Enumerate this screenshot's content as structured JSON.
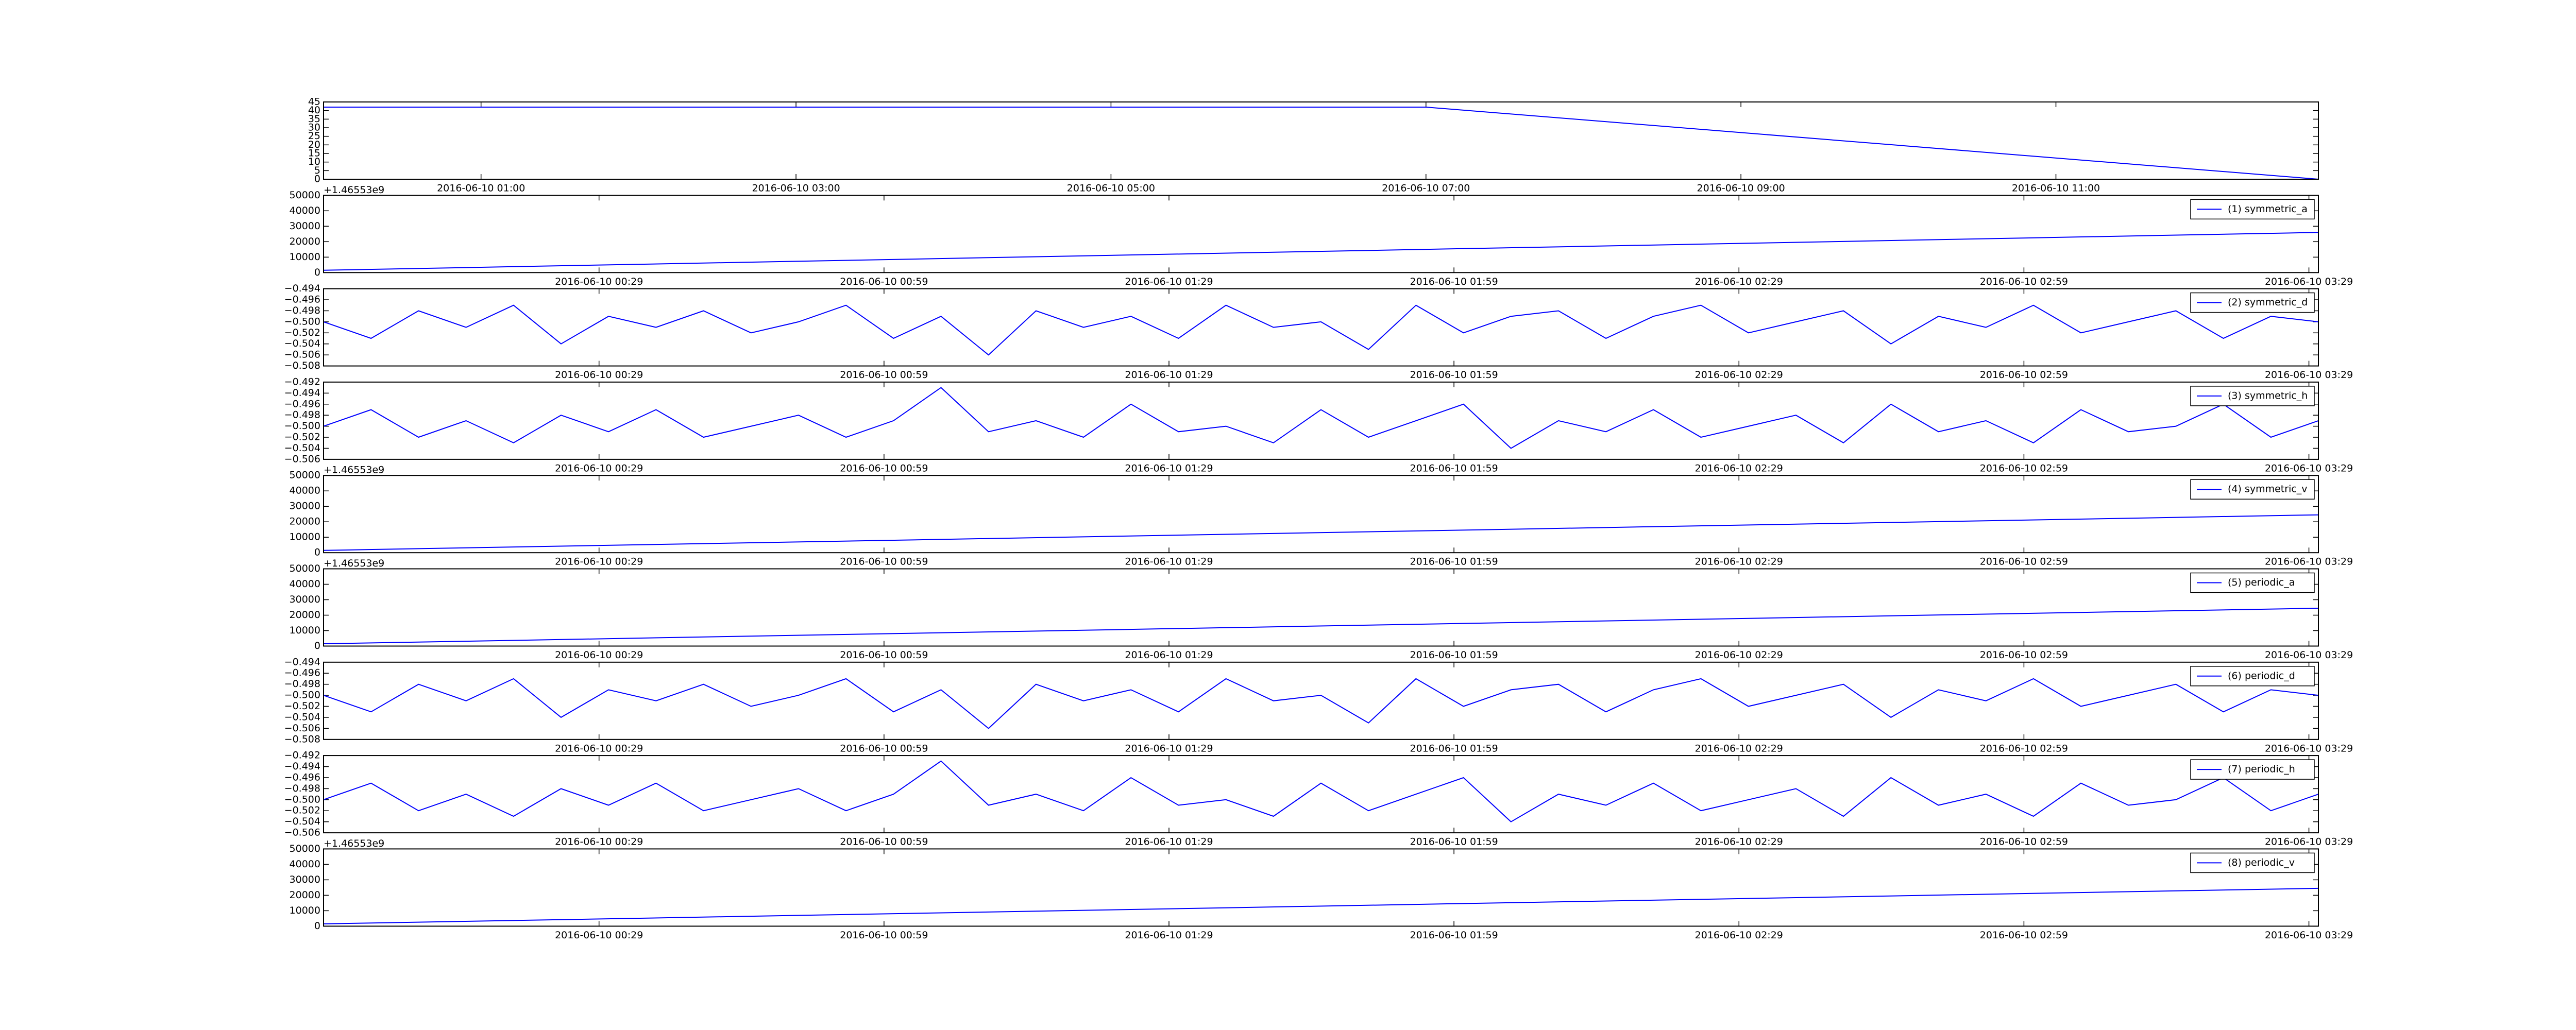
{
  "chart_data": [
    {
      "type": "line",
      "x": [
        "2016-06-10 00:00",
        "2016-06-10 07:00",
        "2016-06-10 12:40"
      ],
      "series": [
        {
          "color": "#0000ff",
          "values": [
            42,
            42,
            0
          ]
        }
      ],
      "xlim": [
        "2016-06-10 00:00",
        "2016-06-10 12:40"
      ],
      "xticks": [
        "2016-06-10 01:00",
        "2016-06-10 03:00",
        "2016-06-10 05:00",
        "2016-06-10 07:00",
        "2016-06-10 09:00",
        "2016-06-10 11:00"
      ],
      "ylim": [
        0,
        45
      ],
      "yticks": [
        0,
        5,
        10,
        15,
        20,
        25,
        30,
        35,
        40,
        45
      ]
    },
    {
      "type": "line",
      "offset_text": "+1.46553e9",
      "legend": "upper right",
      "x": [
        "2016-06-10 00:00",
        "2016-06-10 03:30"
      ],
      "series": [
        {
          "name": "(1) symmetric_a",
          "color": "#0000ff",
          "values": [
            1500,
            26000
          ]
        }
      ],
      "xlim": [
        "2016-06-10 00:00",
        "2016-06-10 03:30"
      ],
      "xticks": [
        "2016-06-10 00:29",
        "2016-06-10 00:59",
        "2016-06-10 01:29",
        "2016-06-10 01:59",
        "2016-06-10 02:29",
        "2016-06-10 02:59",
        "2016-06-10 03:29"
      ],
      "ylim": [
        0,
        50000
      ],
      "yticks": [
        0,
        10000,
        20000,
        30000,
        40000,
        50000
      ]
    },
    {
      "type": "line",
      "legend": "upper right",
      "x": [
        "2016-06-10 00:00",
        "2016-06-10 00:05",
        "2016-06-10 00:10",
        "2016-06-10 00:15",
        "2016-06-10 00:20",
        "2016-06-10 00:25",
        "2016-06-10 00:30",
        "2016-06-10 00:35",
        "2016-06-10 00:40",
        "2016-06-10 00:45",
        "2016-06-10 00:50",
        "2016-06-10 00:55",
        "2016-06-10 01:00",
        "2016-06-10 01:05",
        "2016-06-10 01:10",
        "2016-06-10 01:15",
        "2016-06-10 01:20",
        "2016-06-10 01:25",
        "2016-06-10 01:30",
        "2016-06-10 01:35",
        "2016-06-10 01:40",
        "2016-06-10 01:45",
        "2016-06-10 01:50",
        "2016-06-10 01:55",
        "2016-06-10 02:00",
        "2016-06-10 02:05",
        "2016-06-10 02:10",
        "2016-06-10 02:15",
        "2016-06-10 02:20",
        "2016-06-10 02:25",
        "2016-06-10 02:30",
        "2016-06-10 02:35",
        "2016-06-10 02:40",
        "2016-06-10 02:45",
        "2016-06-10 02:50",
        "2016-06-10 02:55",
        "2016-06-10 03:00",
        "2016-06-10 03:05",
        "2016-06-10 03:10",
        "2016-06-10 03:15",
        "2016-06-10 03:20",
        "2016-06-10 03:25",
        "2016-06-10 03:30"
      ],
      "series": [
        {
          "name": "(2) symmetric_d",
          "color": "#0000ff",
          "values": [
            -0.5,
            -0.503,
            -0.498,
            -0.501,
            -0.497,
            -0.504,
            -0.499,
            -0.501,
            -0.498,
            -0.502,
            -0.5,
            -0.497,
            -0.503,
            -0.499,
            -0.506,
            -0.498,
            -0.501,
            -0.499,
            -0.503,
            -0.497,
            -0.501,
            -0.5,
            -0.505,
            -0.497,
            -0.502,
            -0.499,
            -0.498,
            -0.503,
            -0.499,
            -0.497,
            -0.502,
            -0.5,
            -0.498,
            -0.504,
            -0.499,
            -0.501,
            -0.497,
            -0.502,
            -0.5,
            -0.498,
            -0.503,
            -0.499,
            -0.5
          ]
        }
      ],
      "xlim": [
        "2016-06-10 00:00",
        "2016-06-10 03:30"
      ],
      "xticks": [
        "2016-06-10 00:29",
        "2016-06-10 00:59",
        "2016-06-10 01:29",
        "2016-06-10 01:59",
        "2016-06-10 02:29",
        "2016-06-10 02:59",
        "2016-06-10 03:29"
      ],
      "ylim": [
        -0.508,
        -0.494
      ],
      "yticks": [
        {
          "value": -0.494,
          "label": "−0.494"
        },
        {
          "value": -0.496,
          "label": "−0.496"
        },
        {
          "value": -0.498,
          "label": "−0.498"
        },
        {
          "value": -0.5,
          "label": "−0.500"
        },
        {
          "value": -0.502,
          "label": "−0.502"
        },
        {
          "value": -0.504,
          "label": "−0.504"
        },
        {
          "value": -0.506,
          "label": "−0.506"
        },
        {
          "value": -0.508,
          "label": "−0.508"
        }
      ]
    },
    {
      "type": "line",
      "legend": "upper right",
      "x": [
        "2016-06-10 00:00",
        "2016-06-10 00:05",
        "2016-06-10 00:10",
        "2016-06-10 00:15",
        "2016-06-10 00:20",
        "2016-06-10 00:25",
        "2016-06-10 00:30",
        "2016-06-10 00:35",
        "2016-06-10 00:40",
        "2016-06-10 00:45",
        "2016-06-10 00:50",
        "2016-06-10 00:55",
        "2016-06-10 01:00",
        "2016-06-10 01:05",
        "2016-06-10 01:10",
        "2016-06-10 01:15",
        "2016-06-10 01:20",
        "2016-06-10 01:25",
        "2016-06-10 01:30",
        "2016-06-10 01:35",
        "2016-06-10 01:40",
        "2016-06-10 01:45",
        "2016-06-10 01:50",
        "2016-06-10 01:55",
        "2016-06-10 02:00",
        "2016-06-10 02:05",
        "2016-06-10 02:10",
        "2016-06-10 02:15",
        "2016-06-10 02:20",
        "2016-06-10 02:25",
        "2016-06-10 02:30",
        "2016-06-10 02:35",
        "2016-06-10 02:40",
        "2016-06-10 02:45",
        "2016-06-10 02:50",
        "2016-06-10 02:55",
        "2016-06-10 03:00",
        "2016-06-10 03:05",
        "2016-06-10 03:10",
        "2016-06-10 03:15",
        "2016-06-10 03:20",
        "2016-06-10 03:25",
        "2016-06-10 03:30"
      ],
      "series": [
        {
          "name": "(3) symmetric_h",
          "color": "#0000ff",
          "values": [
            -0.5,
            -0.497,
            -0.502,
            -0.499,
            -0.503,
            -0.498,
            -0.501,
            -0.497,
            -0.502,
            -0.5,
            -0.498,
            -0.502,
            -0.499,
            -0.493,
            -0.501,
            -0.499,
            -0.502,
            -0.496,
            -0.501,
            -0.5,
            -0.503,
            -0.497,
            -0.502,
            -0.499,
            -0.496,
            -0.504,
            -0.499,
            -0.501,
            -0.497,
            -0.502,
            -0.5,
            -0.498,
            -0.503,
            -0.496,
            -0.501,
            -0.499,
            -0.503,
            -0.497,
            -0.501,
            -0.5,
            -0.496,
            -0.502,
            -0.499
          ]
        }
      ],
      "xlim": [
        "2016-06-10 00:00",
        "2016-06-10 03:30"
      ],
      "xticks": [
        "2016-06-10 00:29",
        "2016-06-10 00:59",
        "2016-06-10 01:29",
        "2016-06-10 01:59",
        "2016-06-10 02:29",
        "2016-06-10 02:59",
        "2016-06-10 03:29"
      ],
      "ylim": [
        -0.506,
        -0.492
      ],
      "yticks": [
        {
          "value": -0.492,
          "label": "−0.492"
        },
        {
          "value": -0.494,
          "label": "−0.494"
        },
        {
          "value": -0.496,
          "label": "−0.496"
        },
        {
          "value": -0.498,
          "label": "−0.498"
        },
        {
          "value": -0.5,
          "label": "−0.500"
        },
        {
          "value": -0.502,
          "label": "−0.502"
        },
        {
          "value": -0.504,
          "label": "−0.504"
        },
        {
          "value": -0.506,
          "label": "−0.506"
        }
      ]
    },
    {
      "type": "line",
      "offset_text": "+1.46553e9",
      "legend": "upper right",
      "x": [
        "2016-06-10 00:00",
        "2016-06-10 03:30"
      ],
      "series": [
        {
          "name": "(4) symmetric_v",
          "color": "#0000ff",
          "values": [
            1500,
            24500
          ]
        }
      ],
      "xlim": [
        "2016-06-10 00:00",
        "2016-06-10 03:30"
      ],
      "xticks": [
        "2016-06-10 00:29",
        "2016-06-10 00:59",
        "2016-06-10 01:29",
        "2016-06-10 01:59",
        "2016-06-10 02:29",
        "2016-06-10 02:59",
        "2016-06-10 03:29"
      ],
      "ylim": [
        0,
        50000
      ],
      "yticks": [
        0,
        10000,
        20000,
        30000,
        40000,
        50000
      ]
    },
    {
      "type": "line",
      "offset_text": "+1.46553e9",
      "legend": "upper right",
      "x": [
        "2016-06-10 00:00",
        "2016-06-10 03:30"
      ],
      "series": [
        {
          "name": "(5) periodic_a",
          "color": "#0000ff",
          "values": [
            1500,
            24500
          ]
        }
      ],
      "xlim": [
        "2016-06-10 00:00",
        "2016-06-10 03:30"
      ],
      "xticks": [
        "2016-06-10 00:29",
        "2016-06-10 00:59",
        "2016-06-10 01:29",
        "2016-06-10 01:59",
        "2016-06-10 02:29",
        "2016-06-10 02:59",
        "2016-06-10 03:29"
      ],
      "ylim": [
        0,
        50000
      ],
      "yticks": [
        0,
        10000,
        20000,
        30000,
        40000,
        50000
      ]
    },
    {
      "type": "line",
      "legend": "upper right",
      "x": [
        "2016-06-10 00:00",
        "2016-06-10 00:05",
        "2016-06-10 00:10",
        "2016-06-10 00:15",
        "2016-06-10 00:20",
        "2016-06-10 00:25",
        "2016-06-10 00:30",
        "2016-06-10 00:35",
        "2016-06-10 00:40",
        "2016-06-10 00:45",
        "2016-06-10 00:50",
        "2016-06-10 00:55",
        "2016-06-10 01:00",
        "2016-06-10 01:05",
        "2016-06-10 01:10",
        "2016-06-10 01:15",
        "2016-06-10 01:20",
        "2016-06-10 01:25",
        "2016-06-10 01:30",
        "2016-06-10 01:35",
        "2016-06-10 01:40",
        "2016-06-10 01:45",
        "2016-06-10 01:50",
        "2016-06-10 01:55",
        "2016-06-10 02:00",
        "2016-06-10 02:05",
        "2016-06-10 02:10",
        "2016-06-10 02:15",
        "2016-06-10 02:20",
        "2016-06-10 02:25",
        "2016-06-10 02:30",
        "2016-06-10 02:35",
        "2016-06-10 02:40",
        "2016-06-10 02:45",
        "2016-06-10 02:50",
        "2016-06-10 02:55",
        "2016-06-10 03:00",
        "2016-06-10 03:05",
        "2016-06-10 03:10",
        "2016-06-10 03:15",
        "2016-06-10 03:20",
        "2016-06-10 03:25",
        "2016-06-10 03:30"
      ],
      "series": [
        {
          "name": "(6) periodic_d",
          "color": "#0000ff",
          "values": [
            -0.5,
            -0.503,
            -0.498,
            -0.501,
            -0.497,
            -0.504,
            -0.499,
            -0.501,
            -0.498,
            -0.502,
            -0.5,
            -0.497,
            -0.503,
            -0.499,
            -0.506,
            -0.498,
            -0.501,
            -0.499,
            -0.503,
            -0.497,
            -0.501,
            -0.5,
            -0.505,
            -0.497,
            -0.502,
            -0.499,
            -0.498,
            -0.503,
            -0.499,
            -0.497,
            -0.502,
            -0.5,
            -0.498,
            -0.504,
            -0.499,
            -0.501,
            -0.497,
            -0.502,
            -0.5,
            -0.498,
            -0.503,
            -0.499,
            -0.5
          ]
        }
      ],
      "xlim": [
        "2016-06-10 00:00",
        "2016-06-10 03:30"
      ],
      "xticks": [
        "2016-06-10 00:29",
        "2016-06-10 00:59",
        "2016-06-10 01:29",
        "2016-06-10 01:59",
        "2016-06-10 02:29",
        "2016-06-10 02:59",
        "2016-06-10 03:29"
      ],
      "ylim": [
        -0.508,
        -0.494
      ],
      "yticks": [
        {
          "value": -0.494,
          "label": "−0.494"
        },
        {
          "value": -0.496,
          "label": "−0.496"
        },
        {
          "value": -0.498,
          "label": "−0.498"
        },
        {
          "value": -0.5,
          "label": "−0.500"
        },
        {
          "value": -0.502,
          "label": "−0.502"
        },
        {
          "value": -0.504,
          "label": "−0.504"
        },
        {
          "value": -0.506,
          "label": "−0.506"
        },
        {
          "value": -0.508,
          "label": "−0.508"
        }
      ]
    },
    {
      "type": "line",
      "legend": "upper right",
      "x": [
        "2016-06-10 00:00",
        "2016-06-10 00:05",
        "2016-06-10 00:10",
        "2016-06-10 00:15",
        "2016-06-10 00:20",
        "2016-06-10 00:25",
        "2016-06-10 00:30",
        "2016-06-10 00:35",
        "2016-06-10 00:40",
        "2016-06-10 00:45",
        "2016-06-10 00:50",
        "2016-06-10 00:55",
        "2016-06-10 01:00",
        "2016-06-10 01:05",
        "2016-06-10 01:10",
        "2016-06-10 01:15",
        "2016-06-10 01:20",
        "2016-06-10 01:25",
        "2016-06-10 01:30",
        "2016-06-10 01:35",
        "2016-06-10 01:40",
        "2016-06-10 01:45",
        "2016-06-10 01:50",
        "2016-06-10 01:55",
        "2016-06-10 02:00",
        "2016-06-10 02:05",
        "2016-06-10 02:10",
        "2016-06-10 02:15",
        "2016-06-10 02:20",
        "2016-06-10 02:25",
        "2016-06-10 02:30",
        "2016-06-10 02:35",
        "2016-06-10 02:40",
        "2016-06-10 02:45",
        "2016-06-10 02:50",
        "2016-06-10 02:55",
        "2016-06-10 03:00",
        "2016-06-10 03:05",
        "2016-06-10 03:10",
        "2016-06-10 03:15",
        "2016-06-10 03:20",
        "2016-06-10 03:25",
        "2016-06-10 03:30"
      ],
      "series": [
        {
          "name": "(7) periodic_h",
          "color": "#0000ff",
          "values": [
            -0.5,
            -0.497,
            -0.502,
            -0.499,
            -0.503,
            -0.498,
            -0.501,
            -0.497,
            -0.502,
            -0.5,
            -0.498,
            -0.502,
            -0.499,
            -0.493,
            -0.501,
            -0.499,
            -0.502,
            -0.496,
            -0.501,
            -0.5,
            -0.503,
            -0.497,
            -0.502,
            -0.499,
            -0.496,
            -0.504,
            -0.499,
            -0.501,
            -0.497,
            -0.502,
            -0.5,
            -0.498,
            -0.503,
            -0.496,
            -0.501,
            -0.499,
            -0.503,
            -0.497,
            -0.501,
            -0.5,
            -0.496,
            -0.502,
            -0.499
          ]
        }
      ],
      "xlim": [
        "2016-06-10 00:00",
        "2016-06-10 03:30"
      ],
      "xticks": [
        "2016-06-10 00:29",
        "2016-06-10 00:59",
        "2016-06-10 01:29",
        "2016-06-10 01:59",
        "2016-06-10 02:29",
        "2016-06-10 02:59",
        "2016-06-10 03:29"
      ],
      "ylim": [
        -0.506,
        -0.492
      ],
      "yticks": [
        {
          "value": -0.492,
          "label": "−0.492"
        },
        {
          "value": -0.494,
          "label": "−0.494"
        },
        {
          "value": -0.496,
          "label": "−0.496"
        },
        {
          "value": -0.498,
          "label": "−0.498"
        },
        {
          "value": -0.5,
          "label": "−0.500"
        },
        {
          "value": -0.502,
          "label": "−0.502"
        },
        {
          "value": -0.504,
          "label": "−0.504"
        },
        {
          "value": -0.506,
          "label": "−0.506"
        }
      ]
    },
    {
      "type": "line",
      "offset_text": "+1.46553e9",
      "legend": "upper right",
      "x": [
        "2016-06-10 00:00",
        "2016-06-10 03:30"
      ],
      "series": [
        {
          "name": "(8) periodic_v",
          "color": "#0000ff",
          "values": [
            1500,
            24500
          ]
        }
      ],
      "xlim": [
        "2016-06-10 00:00",
        "2016-06-10 03:30"
      ],
      "xticks": [
        "2016-06-10 00:29",
        "2016-06-10 00:59",
        "2016-06-10 01:29",
        "2016-06-10 01:59",
        "2016-06-10 02:29",
        "2016-06-10 02:59",
        "2016-06-10 03:29"
      ],
      "ylim": [
        0,
        50000
      ],
      "yticks": [
        0,
        10000,
        20000,
        30000,
        40000,
        50000
      ]
    }
  ]
}
